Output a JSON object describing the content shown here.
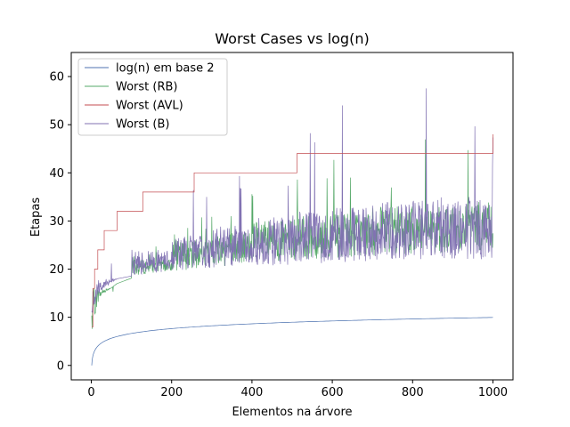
{
  "chart_data": {
    "type": "line",
    "title": "Worst Cases vs log(n)",
    "xlabel": "Elementos na árvore",
    "ylabel": "Etapas",
    "xlim": [
      -50,
      1050
    ],
    "ylim": [
      -3,
      65
    ],
    "xticks": [
      0,
      200,
      400,
      600,
      800,
      1000
    ],
    "yticks": [
      0,
      10,
      20,
      30,
      40,
      50,
      60
    ],
    "grid": false,
    "legend_position": "top-left",
    "series": [
      {
        "name": "log(n) em base 2",
        "color": "#4c72b0",
        "x": [
          1,
          2,
          4,
          8,
          16,
          32,
          64,
          128,
          256,
          512,
          1000
        ],
        "y": [
          0,
          1,
          2,
          3,
          4,
          5,
          6,
          7,
          8,
          9,
          9.97
        ]
      },
      {
        "name": "Worst (RB)",
        "color": "#55a868",
        "x": [
          1,
          4,
          8,
          16,
          32,
          64,
          128,
          256,
          512,
          768,
          1000
        ],
        "y": [
          2,
          8,
          10,
          13,
          15,
          17,
          19,
          20,
          22,
          23,
          24
        ],
        "spike_peaks": [
          15,
          25,
          32,
          37,
          40,
          43,
          45,
          46,
          47,
          47
        ],
        "noise_top": [
          16,
          22,
          26,
          28,
          30,
          31,
          32,
          33,
          33,
          34
        ]
      },
      {
        "name": "Worst (AVL)",
        "color": "#c44e52",
        "x": [
          1,
          4,
          8,
          16,
          32,
          64,
          128,
          256,
          512,
          1000
        ],
        "y": [
          8,
          16,
          20,
          24,
          28,
          32,
          36,
          40,
          44,
          48
        ]
      },
      {
        "name": "Worst (B)",
        "color": "#8172b2",
        "x": [
          1,
          4,
          8,
          16,
          32,
          64,
          128,
          256,
          512,
          768,
          1000
        ],
        "y": [
          5,
          10,
          12,
          14,
          16,
          18,
          19,
          20,
          21,
          22,
          22
        ],
        "spike_peaks": [
          22,
          30,
          37,
          42,
          47,
          50,
          56,
          60,
          62,
          53
        ],
        "noise_top": [
          18,
          24,
          27,
          29,
          31,
          32,
          33,
          34,
          35,
          35
        ]
      }
    ]
  }
}
